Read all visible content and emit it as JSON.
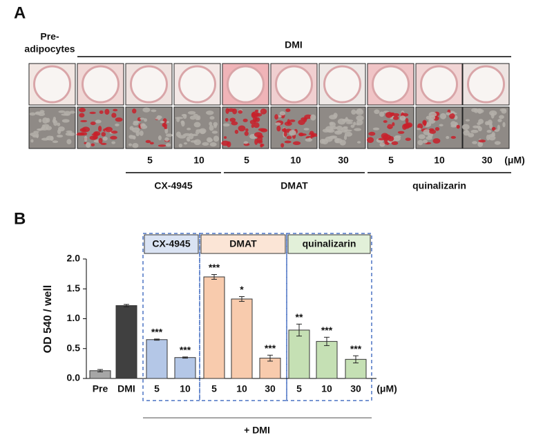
{
  "panel_a": {
    "label": "A",
    "pre_label": [
      "Pre-",
      "adipocytes"
    ],
    "treatment": "DMI",
    "doses": [
      "5",
      "10",
      "5",
      "10",
      "30",
      "5",
      "10",
      "30"
    ],
    "unit": "(μM)",
    "groups": [
      "CX-4945",
      "DMAT",
      "quinalizarin"
    ]
  },
  "chart_data": {
    "type": "bar",
    "panel_label": "B",
    "y_label": "OD 540 / well",
    "categories": [
      "Pre",
      "DMI",
      "5",
      "10",
      "5",
      "10",
      "30",
      "5",
      "10",
      "30"
    ],
    "values": [
      0.13,
      1.22,
      0.65,
      0.35,
      1.7,
      1.33,
      0.34,
      0.81,
      0.62,
      0.32
    ],
    "errors": [
      0.02,
      0.02,
      0.01,
      0.01,
      0.04,
      0.04,
      0.05,
      0.1,
      0.07,
      0.06
    ],
    "annotations": [
      null,
      null,
      "***",
      "***",
      "***",
      "*",
      "***",
      "**",
      "***",
      "***"
    ],
    "colors": [
      "#a6a6a6",
      "#404040",
      "#b4c7e7",
      "#b4c7e7",
      "#f8cbad",
      "#f8cbad",
      "#f8cbad",
      "#c5e0b4",
      "#c5e0b4",
      "#c5e0b4"
    ],
    "groups": [
      "CX-4945",
      "DMAT",
      "quinalizarin"
    ],
    "unit": "(μM)",
    "footer": "+ DMI",
    "ylim": [
      0,
      2.0
    ],
    "yticks": [
      {
        "value": 0,
        "label": "0.0"
      },
      0.5,
      {
        "value": 1,
        "label": "1.0"
      },
      1.5,
      {
        "value": 2,
        "label": "2.0"
      }
    ]
  }
}
